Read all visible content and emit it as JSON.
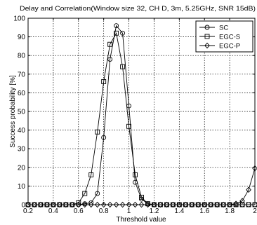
{
  "chart_data": {
    "type": "line",
    "title": "Delay and Correlation(Window size 32, CH D, 3m, 5.25GHz, SNR 15dB)",
    "xlabel": "Threshold value",
    "ylabel": "Success probability [%]",
    "xlim": [
      0.2,
      2.0
    ],
    "ylim": [
      0,
      100
    ],
    "xticks": [
      "0.2",
      "0.4",
      "0.6",
      "0.8",
      "1",
      "1.2",
      "1.4",
      "1.6",
      "1.8",
      "2"
    ],
    "yticks": [
      "0",
      "10",
      "20",
      "30",
      "40",
      "50",
      "60",
      "70",
      "80",
      "90",
      "100"
    ],
    "grid": true,
    "legend_position": "top-right",
    "x": [
      0.2,
      0.25,
      0.3,
      0.35,
      0.4,
      0.45,
      0.5,
      0.55,
      0.6,
      0.65,
      0.7,
      0.75,
      0.8,
      0.85,
      0.9,
      0.95,
      1.0,
      1.05,
      1.1,
      1.15,
      1.2,
      1.25,
      1.3,
      1.35,
      1.4,
      1.45,
      1.5,
      1.55,
      1.6,
      1.65,
      1.7,
      1.75,
      1.8,
      1.85,
      1.9,
      1.95,
      2.0
    ],
    "series": [
      {
        "name": "SC",
        "marker": "circle",
        "values": [
          0,
          0,
          0,
          0,
          0,
          0,
          0,
          0,
          0,
          0.5,
          1,
          6,
          36,
          78,
          96,
          92,
          53,
          12,
          3,
          0.5,
          0,
          0,
          0,
          0,
          0,
          0,
          0,
          0,
          0,
          0,
          0,
          0,
          0,
          0,
          0,
          0,
          0
        ]
      },
      {
        "name": "EGC-S",
        "marker": "square",
        "values": [
          0,
          0,
          0,
          0,
          0,
          0,
          0,
          0,
          1,
          6,
          16,
          39,
          66,
          86,
          92,
          74,
          42,
          16,
          4,
          0.5,
          0,
          0,
          0,
          0,
          0,
          0,
          0,
          0,
          0,
          0,
          0,
          0,
          0,
          0,
          0,
          0,
          0
        ]
      },
      {
        "name": "EGC-P",
        "marker": "diamond",
        "values": [
          0,
          0,
          0,
          0,
          0,
          0,
          0,
          0,
          0,
          0,
          0,
          0,
          0,
          0,
          0,
          0,
          0,
          0,
          0,
          0,
          0,
          0,
          0,
          0,
          0,
          0,
          0,
          0,
          0,
          0,
          0,
          0,
          0,
          0.5,
          2,
          8,
          19.5
        ]
      }
    ]
  }
}
